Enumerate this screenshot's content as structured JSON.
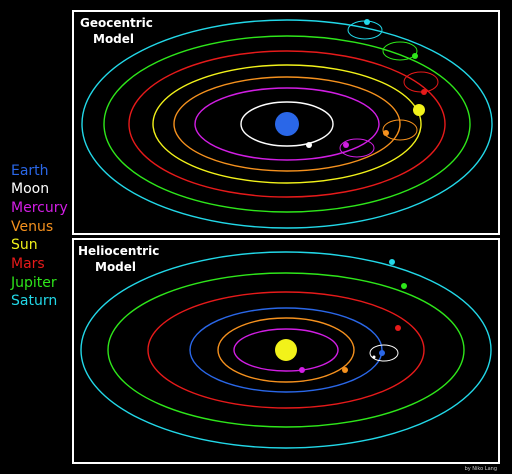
{
  "legend": [
    {
      "label": "Earth",
      "color": "#2a67e8"
    },
    {
      "label": "Moon",
      "color": "#ffffff"
    },
    {
      "label": "Mercury",
      "color": "#d11ee3"
    },
    {
      "label": "Venus",
      "color": "#f5911e"
    },
    {
      "label": "Sun",
      "color": "#f2f21a"
    },
    {
      "label": "Mars",
      "color": "#e61a1a"
    },
    {
      "label": "Jupiter",
      "color": "#2ee61a"
    },
    {
      "label": "Saturn",
      "color": "#22d8e8"
    }
  ],
  "geocentric": {
    "title_line1": "Geocentric",
    "title_line2": "Model",
    "center_body": "Earth"
  },
  "heliocentric": {
    "title_line1": "Heliocentric",
    "title_line2": "Model",
    "center_body": "Sun"
  },
  "credit": "by Niko Lang"
}
